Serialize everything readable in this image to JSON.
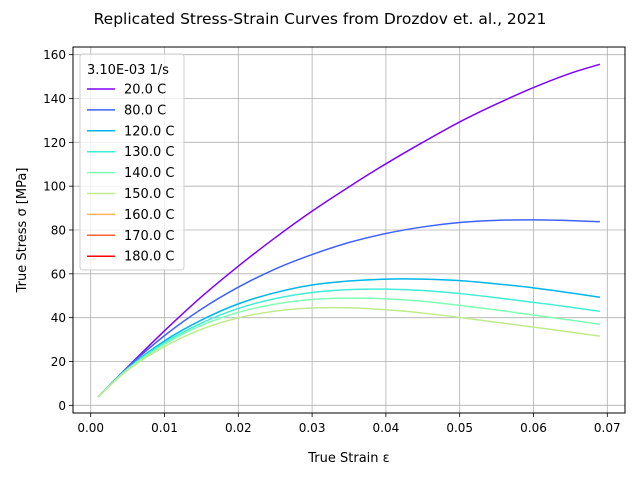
{
  "chart_data": {
    "type": "line",
    "title": "Replicated Stress-Strain Curves from Drozdov et. al., 2021",
    "xlabel": "True Strain ε",
    "ylabel": "True Stress σ [MPa]",
    "xlim": [
      -0.0024,
      0.0724
    ],
    "ylim": [
      -3.5,
      163.5
    ],
    "xticks": [
      0.0,
      0.01,
      0.02,
      0.03,
      0.04,
      0.05,
      0.06,
      0.07
    ],
    "xtick_labels": [
      "0.00",
      "0.01",
      "0.02",
      "0.03",
      "0.04",
      "0.05",
      "0.06",
      "0.07"
    ],
    "yticks": [
      0,
      20,
      40,
      60,
      80,
      100,
      120,
      140,
      160
    ],
    "ytick_labels": [
      "0",
      "20",
      "40",
      "60",
      "80",
      "100",
      "120",
      "140",
      "160"
    ],
    "grid": true,
    "legend": {
      "title": "3.10E-03 1/s",
      "placement": "upper-left"
    },
    "series": [
      {
        "name": "20.0 C",
        "color": "#8000ff",
        "x": [
          0.001,
          0.005,
          0.01,
          0.015,
          0.02,
          0.025,
          0.03,
          0.035,
          0.04,
          0.045,
          0.05,
          0.055,
          0.06,
          0.065,
          0.069
        ],
        "y": [
          3.8,
          17.5,
          34.0,
          49.5,
          63.5,
          76.5,
          88.6,
          99.7,
          110.2,
          120.0,
          129.3,
          137.5,
          145.0,
          151.5,
          155.6
        ]
      },
      {
        "name": "80.0 C",
        "color": "#4062fa",
        "x": [
          0.001,
          0.005,
          0.01,
          0.015,
          0.02,
          0.025,
          0.03,
          0.035,
          0.04,
          0.045,
          0.05,
          0.055,
          0.06,
          0.065,
          0.069
        ],
        "y": [
          3.8,
          17.3,
          31.8,
          43.9,
          53.9,
          62.2,
          68.8,
          74.3,
          78.4,
          81.4,
          83.4,
          84.4,
          84.6,
          84.3,
          83.8
        ]
      },
      {
        "name": "120.0 C",
        "color": "#00b5eb",
        "x": [
          0.001,
          0.005,
          0.01,
          0.015,
          0.02,
          0.025,
          0.03,
          0.035,
          0.04,
          0.045,
          0.05,
          0.055,
          0.06,
          0.065,
          0.069
        ],
        "y": [
          3.8,
          16.8,
          29.4,
          38.9,
          46.3,
          51.4,
          54.9,
          56.7,
          57.6,
          57.6,
          56.9,
          55.4,
          53.6,
          51.3,
          49.3
        ]
      },
      {
        "name": "130.0 C",
        "color": "#40ecd4",
        "x": [
          0.001,
          0.005,
          0.01,
          0.015,
          0.02,
          0.025,
          0.03,
          0.035,
          0.04,
          0.045,
          0.05,
          0.055,
          0.06,
          0.065,
          0.069
        ],
        "y": [
          3.8,
          16.7,
          28.6,
          37.5,
          44.2,
          48.7,
          51.5,
          52.8,
          53.0,
          52.4,
          51.0,
          49.1,
          47.0,
          44.8,
          42.9
        ]
      },
      {
        "name": "140.0 C",
        "color": "#80ffb4",
        "x": [
          0.001,
          0.005,
          0.01,
          0.015,
          0.02,
          0.025,
          0.03,
          0.035,
          0.04,
          0.045,
          0.05,
          0.055,
          0.06,
          0.065,
          0.069
        ],
        "y": [
          3.8,
          16.4,
          27.9,
          36.4,
          42.4,
          46.2,
          48.3,
          48.9,
          48.6,
          47.5,
          45.6,
          43.5,
          41.2,
          38.9,
          37.0
        ]
      },
      {
        "name": "150.0 C",
        "color": "#c0eb8d",
        "x": [
          0.001,
          0.005,
          0.01,
          0.015,
          0.02,
          0.025,
          0.03,
          0.035,
          0.04,
          0.045,
          0.05,
          0.055,
          0.06,
          0.065,
          0.069
        ],
        "y": [
          3.8,
          16.0,
          26.8,
          34.7,
          39.9,
          43.0,
          44.4,
          44.5,
          43.6,
          42.1,
          40.1,
          37.9,
          35.7,
          33.4,
          31.6
        ]
      },
      {
        "name": "160.0 C",
        "color": "#ffb360",
        "x": [],
        "y": []
      },
      {
        "name": "170.0 C",
        "color": "#ff6231",
        "x": [],
        "y": []
      },
      {
        "name": "180.0 C",
        "color": "#ff0000",
        "x": [],
        "y": []
      }
    ]
  }
}
